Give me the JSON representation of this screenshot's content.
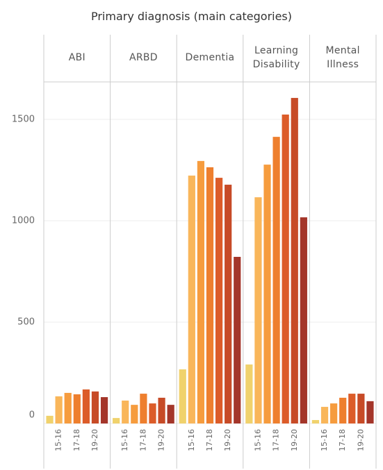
{
  "chart_data": {
    "type": "bar",
    "title": "Primary diagnosis (main categories)",
    "categories": [
      null,
      "15-16",
      null,
      "17-18",
      null,
      "19-20",
      null
    ],
    "colors": [
      "#f0d26c",
      "#f9b65a",
      "#f69c3e",
      "#ee7f2e",
      "#dc5c29",
      "#c74b27",
      "#a4362a"
    ],
    "panels": [
      {
        "name": "ABI",
        "values": [
          38,
          134,
          151,
          144,
          168,
          158,
          130
        ]
      },
      {
        "name": "ARBD",
        "values": [
          27,
          113,
          92,
          147,
          99,
          127,
          92
        ]
      },
      {
        "name": "Dementia",
        "values": [
          267,
          1223,
          1295,
          1264,
          1212,
          1178,
          822
        ]
      },
      {
        "name": "Learning Disability",
        "values": [
          291,
          1116,
          1277,
          1414,
          1524,
          1606,
          1017
        ]
      },
      {
        "name": "Mental Illness",
        "values": [
          17,
          82,
          99,
          127,
          147,
          147,
          110
        ]
      }
    ],
    "ylim": [
      0,
      1685
    ],
    "yticks": [
      0,
      500,
      1000,
      1500
    ],
    "grid": true
  }
}
